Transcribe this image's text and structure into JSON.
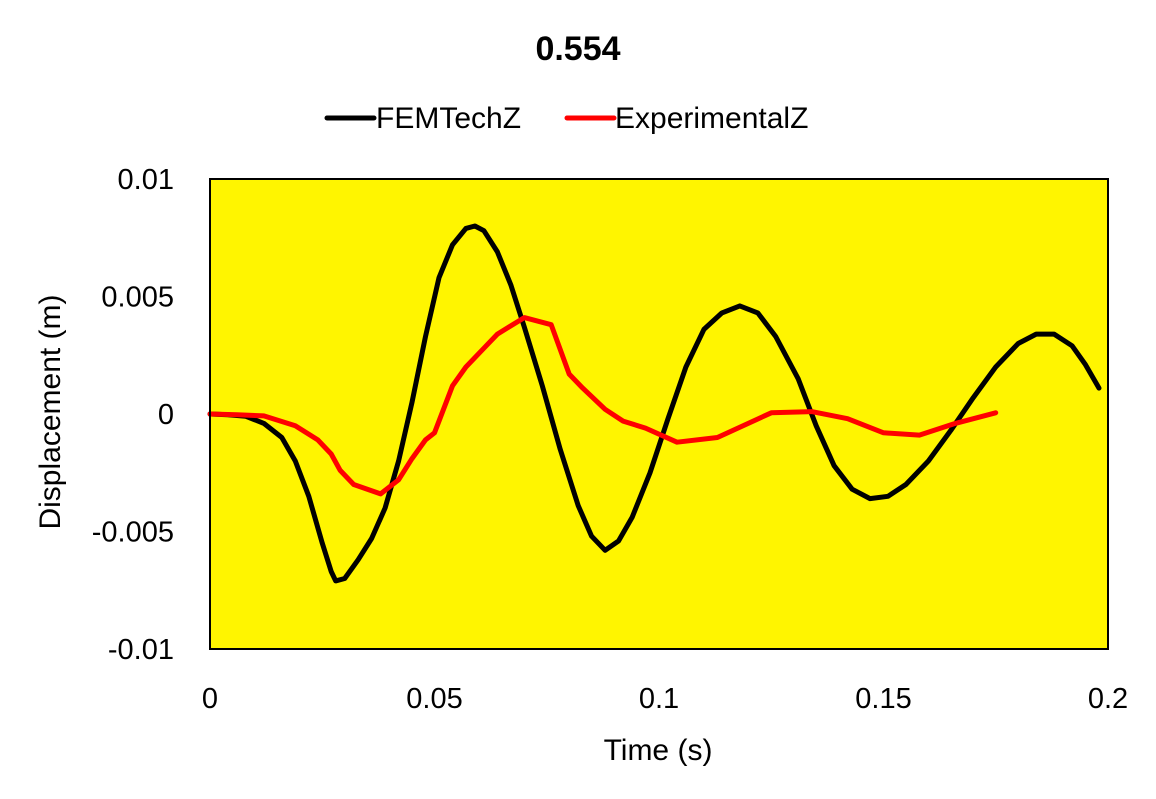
{
  "chart_data": {
    "type": "line",
    "title": "0.554",
    "xlabel": "Time (s)",
    "ylabel": "Displacement (m)",
    "xlim": [
      0,
      0.2
    ],
    "ylim": [
      -0.01,
      0.01
    ],
    "x_ticks": [
      0,
      0.05,
      0.1,
      0.15,
      0.2
    ],
    "x_tick_labels": [
      "0",
      "0.05",
      "0.1",
      "0.15",
      "0.2"
    ],
    "y_ticks": [
      0.01,
      0.005,
      0,
      -0.005,
      -0.01
    ],
    "y_tick_labels": [
      "0.01",
      "0.005",
      "0",
      "-0.005",
      "-0.01"
    ],
    "grid": false,
    "legend_position": "top",
    "plot_background": "#FFF500",
    "series": [
      {
        "name": "FEMTechZ",
        "color": "#000000",
        "points": [
          [
            0,
            0
          ],
          [
            0.004,
            -3e-05
          ],
          [
            0.008,
            -0.0001
          ],
          [
            0.012,
            -0.0004
          ],
          [
            0.016,
            -0.001
          ],
          [
            0.019,
            -0.002
          ],
          [
            0.022,
            -0.0035
          ],
          [
            0.025,
            -0.0055
          ],
          [
            0.027,
            -0.0067
          ],
          [
            0.028,
            -0.0071
          ],
          [
            0.03,
            -0.007
          ],
          [
            0.033,
            -0.0062
          ],
          [
            0.036,
            -0.0053
          ],
          [
            0.039,
            -0.004
          ],
          [
            0.042,
            -0.002
          ],
          [
            0.045,
            0.0005
          ],
          [
            0.048,
            0.0033
          ],
          [
            0.051,
            0.0058
          ],
          [
            0.054,
            0.0072
          ],
          [
            0.057,
            0.0079
          ],
          [
            0.059,
            0.008
          ],
          [
            0.061,
            0.0078
          ],
          [
            0.064,
            0.0069
          ],
          [
            0.067,
            0.0055
          ],
          [
            0.07,
            0.0037
          ],
          [
            0.074,
            0.0012
          ],
          [
            0.078,
            -0.0015
          ],
          [
            0.082,
            -0.0039
          ],
          [
            0.085,
            -0.0052
          ],
          [
            0.088,
            -0.0058
          ],
          [
            0.091,
            -0.0054
          ],
          [
            0.094,
            -0.0044
          ],
          [
            0.098,
            -0.0025
          ],
          [
            0.102,
            -0.0002
          ],
          [
            0.106,
            0.002
          ],
          [
            0.11,
            0.0036
          ],
          [
            0.114,
            0.0043
          ],
          [
            0.118,
            0.0046
          ],
          [
            0.122,
            0.0043
          ],
          [
            0.126,
            0.0033
          ],
          [
            0.131,
            0.0015
          ],
          [
            0.135,
            -0.0005
          ],
          [
            0.139,
            -0.0022
          ],
          [
            0.143,
            -0.0032
          ],
          [
            0.147,
            -0.0036
          ],
          [
            0.151,
            -0.0035
          ],
          [
            0.155,
            -0.003
          ],
          [
            0.16,
            -0.002
          ],
          [
            0.165,
            -0.0007
          ],
          [
            0.17,
            0.0007
          ],
          [
            0.175,
            0.002
          ],
          [
            0.18,
            0.003
          ],
          [
            0.184,
            0.0034
          ],
          [
            0.188,
            0.0034
          ],
          [
            0.192,
            0.0029
          ],
          [
            0.195,
            0.0021
          ],
          [
            0.198,
            0.0011
          ]
        ]
      },
      {
        "name": "ExperimentalZ",
        "color": "#FF0000",
        "points": [
          [
            0,
            0
          ],
          [
            0.006,
            -3e-05
          ],
          [
            0.012,
            -8e-05
          ],
          [
            0.019,
            -0.0005
          ],
          [
            0.024,
            -0.0011
          ],
          [
            0.027,
            -0.0017
          ],
          [
            0.029,
            -0.0024
          ],
          [
            0.032,
            -0.003
          ],
          [
            0.038,
            -0.0034
          ],
          [
            0.042,
            -0.0028
          ],
          [
            0.045,
            -0.0019
          ],
          [
            0.048,
            -0.0011
          ],
          [
            0.05,
            -0.0008
          ],
          [
            0.052,
            0.0002
          ],
          [
            0.054,
            0.0012
          ],
          [
            0.057,
            0.002
          ],
          [
            0.061,
            0.0028
          ],
          [
            0.064,
            0.0034
          ],
          [
            0.07,
            0.0041
          ],
          [
            0.076,
            0.0038
          ],
          [
            0.08,
            0.0017
          ],
          [
            0.083,
            0.0011
          ],
          [
            0.088,
            0.0002
          ],
          [
            0.092,
            -0.0003
          ],
          [
            0.097,
            -0.0006
          ],
          [
            0.104,
            -0.0012
          ],
          [
            0.113,
            -0.001
          ],
          [
            0.125,
            5e-05
          ],
          [
            0.134,
            0.0001
          ],
          [
            0.142,
            -0.0002
          ],
          [
            0.15,
            -0.0008
          ],
          [
            0.158,
            -0.0009
          ],
          [
            0.166,
            -0.0004
          ],
          [
            0.175,
            5e-05
          ]
        ]
      }
    ]
  }
}
